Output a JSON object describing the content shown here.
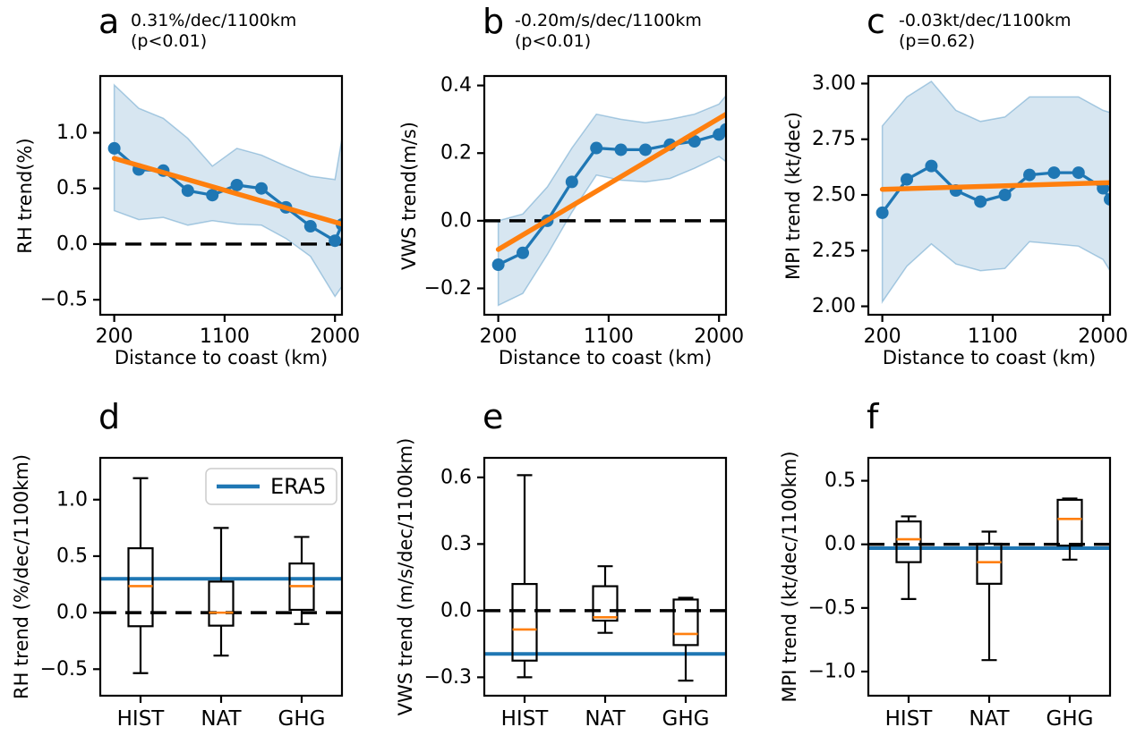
{
  "figure": {
    "background": "#ffffff",
    "colors": {
      "blue": "#1f77b4",
      "orange": "#ff7f0e",
      "band_fill": "rgba(31,119,180,0.18)",
      "band_edge": "rgba(31,119,180,0.35)",
      "black": "#000000",
      "legend_border": "#cccccc"
    }
  },
  "chart_data": [
    {
      "id": "a",
      "type": "line",
      "letter": "a",
      "title_line1": "0.31%/dec/1100km",
      "title_line2": "(p<0.01)",
      "xlabel": "Distance to coast (km)",
      "ylabel": "RH trend(%)",
      "xlim": [
        86,
        2057
      ],
      "ylim": [
        -0.635,
        1.51
      ],
      "x_ticks": [
        200,
        1100,
        2000
      ],
      "x_tick_labels": [
        "200",
        "1100",
        "2000"
      ],
      "y_ticks": [
        -0.5,
        0.0,
        0.5,
        1.0
      ],
      "y_tick_labels": [
        "−0.5",
        "0.0",
        "0.5",
        "1.0"
      ],
      "zero_line": true,
      "x": [
        200,
        400,
        600,
        800,
        1000,
        1200,
        1400,
        1600,
        1800,
        2000,
        2057
      ],
      "y": [
        0.86,
        0.67,
        0.66,
        0.48,
        0.44,
        0.53,
        0.5,
        0.33,
        0.16,
        0.03,
        0.175
      ],
      "band_upper": [
        1.43,
        1.22,
        1.13,
        0.95,
        0.7,
        0.86,
        0.8,
        0.7,
        0.61,
        0.58,
        0.95
      ],
      "band_lower": [
        0.3,
        0.22,
        0.24,
        0.17,
        0.21,
        0.18,
        0.17,
        0.05,
        -0.11,
        -0.47,
        -0.38
      ],
      "trend": {
        "x": [
          200,
          2057
        ],
        "y": [
          0.77,
          0.18
        ]
      }
    },
    {
      "id": "b",
      "type": "line",
      "letter": "b",
      "title_line1": "-0.20m/s/dec/1100km",
      "title_line2": "(p<0.01)",
      "xlabel": "Distance to coast (km)",
      "ylabel": "VWS trend(m/s)",
      "xlim": [
        86,
        2057
      ],
      "ylim": [
        -0.278,
        0.428
      ],
      "x_ticks": [
        200,
        1100,
        2000
      ],
      "x_tick_labels": [
        "200",
        "1100",
        "2000"
      ],
      "y_ticks": [
        -0.2,
        0.0,
        0.2,
        0.4
      ],
      "y_tick_labels": [
        "−0.2",
        "0.0",
        "0.2",
        "0.4"
      ],
      "zero_line": true,
      "x": [
        200,
        400,
        600,
        800,
        1000,
        1200,
        1400,
        1600,
        1800,
        2000,
        2057
      ],
      "y": [
        -0.13,
        -0.095,
        0.0,
        0.115,
        0.215,
        0.21,
        0.21,
        0.225,
        0.235,
        0.255,
        0.27
      ],
      "band_upper": [
        0.0,
        0.02,
        0.1,
        0.215,
        0.315,
        0.3,
        0.29,
        0.3,
        0.315,
        0.345,
        0.37
      ],
      "band_lower": [
        -0.25,
        -0.215,
        -0.1,
        0.025,
        0.135,
        0.12,
        0.115,
        0.125,
        0.155,
        0.19,
        0.175
      ],
      "trend": {
        "x": [
          200,
          2057
        ],
        "y": [
          -0.085,
          0.315
        ]
      }
    },
    {
      "id": "c",
      "type": "line",
      "letter": "c",
      "title_line1": "-0.03kt/dec/1100km",
      "title_line2": "(p=0.62)",
      "xlabel": "Distance to coast (km)",
      "ylabel": "MPI trend (kt/dec)",
      "xlim": [
        86,
        2057
      ],
      "ylim": [
        1.962,
        3.034
      ],
      "x_ticks": [
        200,
        1100,
        2000
      ],
      "x_tick_labels": [
        "200",
        "1100",
        "2000"
      ],
      "y_ticks": [
        2.0,
        2.25,
        2.5,
        2.75,
        3.0
      ],
      "y_tick_labels": [
        "2.00",
        "2.25",
        "2.50",
        "2.75",
        "3.00"
      ],
      "zero_line": false,
      "x": [
        200,
        400,
        600,
        800,
        1000,
        1200,
        1400,
        1600,
        1800,
        2000,
        2057
      ],
      "y": [
        2.42,
        2.57,
        2.63,
        2.52,
        2.47,
        2.5,
        2.59,
        2.6,
        2.6,
        2.53,
        2.48
      ],
      "band_upper": [
        2.81,
        2.94,
        3.01,
        2.88,
        2.83,
        2.85,
        2.94,
        2.94,
        2.94,
        2.88,
        2.87
      ],
      "band_lower": [
        2.02,
        2.18,
        2.28,
        2.19,
        2.16,
        2.17,
        2.29,
        2.28,
        2.27,
        2.21,
        2.16
      ],
      "trend": {
        "x": [
          200,
          2057
        ],
        "y": [
          2.525,
          2.555
        ]
      }
    },
    {
      "id": "d",
      "type": "box",
      "letter": "d",
      "ylabel": "RH trend (%/dec/1100km)",
      "categories": [
        "HIST",
        "NAT",
        "GHG"
      ],
      "ylim": [
        -0.735,
        1.37
      ],
      "y_ticks": [
        -0.5,
        0.0,
        0.5,
        1.0
      ],
      "y_tick_labels": [
        "−0.5",
        "0.0",
        "0.5",
        "1.0"
      ],
      "zero_line": true,
      "era5": 0.3,
      "legend": {
        "label": "ERA5"
      },
      "boxes": [
        {
          "label": "HIST",
          "whisker_low": -0.535,
          "q1": -0.12,
          "median": 0.235,
          "q3": 0.57,
          "whisker_high": 1.19
        },
        {
          "label": "NAT",
          "whisker_low": -0.38,
          "q1": -0.115,
          "median": 0.0,
          "q3": 0.275,
          "whisker_high": 0.75
        },
        {
          "label": "GHG",
          "whisker_low": -0.1,
          "q1": 0.025,
          "median": 0.235,
          "q3": 0.435,
          "whisker_high": 0.67
        }
      ]
    },
    {
      "id": "e",
      "type": "box",
      "letter": "e",
      "ylabel": "VWS trend (m/s/dec/1100km)",
      "categories": [
        "HIST",
        "NAT",
        "GHG"
      ],
      "ylim": [
        -0.383,
        0.688
      ],
      "y_ticks": [
        -0.3,
        0.0,
        0.3,
        0.6
      ],
      "y_tick_labels": [
        "−0.3",
        "0.0",
        "0.3",
        "0.6"
      ],
      "zero_line": true,
      "era5": -0.195,
      "legend": null,
      "boxes": [
        {
          "label": "HIST",
          "whisker_low": -0.3,
          "q1": -0.225,
          "median": -0.085,
          "q3": 0.12,
          "whisker_high": 0.61
        },
        {
          "label": "NAT",
          "whisker_low": -0.1,
          "q1": -0.045,
          "median": -0.03,
          "q3": 0.11,
          "whisker_high": 0.2
        },
        {
          "label": "GHG",
          "whisker_low": -0.315,
          "q1": -0.155,
          "median": -0.105,
          "q3": 0.05,
          "whisker_high": 0.058
        }
      ]
    },
    {
      "id": "f",
      "type": "box",
      "letter": "f",
      "ylabel": "MPI trend (kt/dec/1100km)",
      "categories": [
        "HIST",
        "NAT",
        "GHG"
      ],
      "ylim": [
        -1.19,
        0.68
      ],
      "y_ticks": [
        -1.0,
        -0.5,
        0.0,
        0.5
      ],
      "y_tick_labels": [
        "−1.0",
        "−0.5",
        "0.0",
        "0.5"
      ],
      "zero_line": true,
      "era5": -0.03,
      "legend": null,
      "boxes": [
        {
          "label": "HIST",
          "whisker_low": -0.43,
          "q1": -0.14,
          "median": 0.04,
          "q3": 0.18,
          "whisker_high": 0.22
        },
        {
          "label": "NAT",
          "whisker_low": -0.91,
          "q1": -0.31,
          "median": -0.14,
          "q3": 0.005,
          "whisker_high": 0.1
        },
        {
          "label": "GHG",
          "whisker_low": -0.12,
          "q1": -0.01,
          "median": 0.2,
          "q3": 0.35,
          "whisker_high": 0.36
        }
      ]
    }
  ]
}
